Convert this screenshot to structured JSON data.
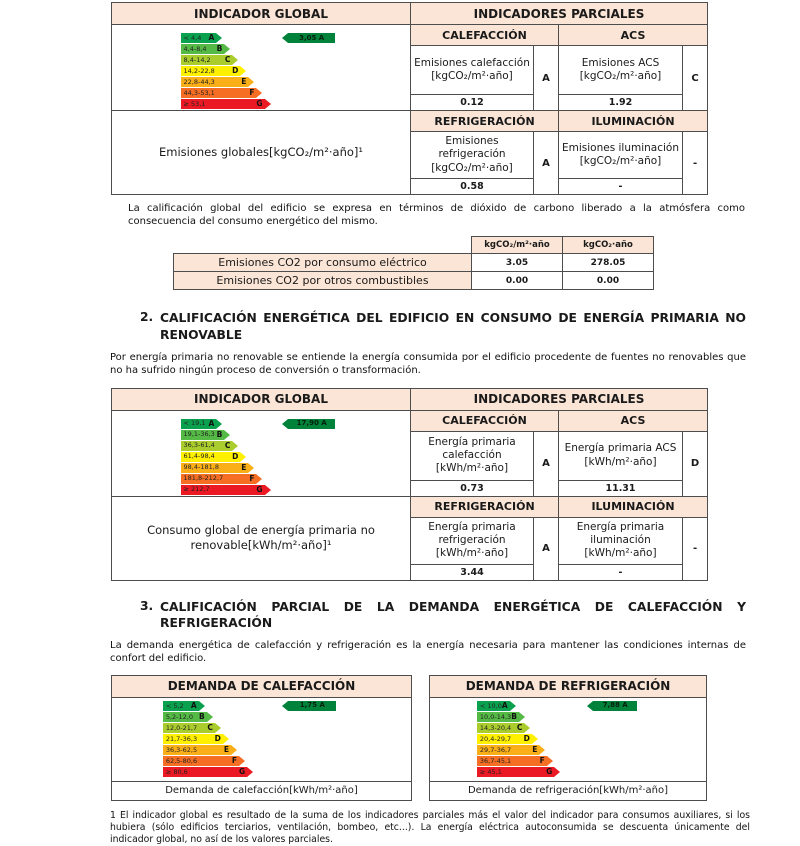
{
  "colors": {
    "header_bg": "#fbe5d6",
    "indicator": "#00823b",
    "scale_colors": [
      "#0aa14e",
      "#55b946",
      "#aacd2d",
      "#fff000",
      "#faaf19",
      "#f56e23",
      "#eb1923"
    ]
  },
  "table1": {
    "header_global": "INDICADOR GLOBAL",
    "header_partials": "INDICADORES PARCIALES",
    "global_label": "Emisiones globales[kgCO₂/m²·año]¹",
    "scale": {
      "indicator": "3,05 A",
      "indicator_color": "#00823b",
      "bars": [
        {
          "range": "< 4,4",
          "letter": "A",
          "color": "#0aa14e"
        },
        {
          "range": "4,4-8,4",
          "letter": "B",
          "color": "#55b946"
        },
        {
          "range": "8,4-14,2",
          "letter": "C",
          "color": "#aacd2d"
        },
        {
          "range": "14,2-22,8",
          "letter": "D",
          "color": "#fff000"
        },
        {
          "range": "22,8-44,3",
          "letter": "E",
          "color": "#faaf19"
        },
        {
          "range": "44,3-53,1",
          "letter": "F",
          "color": "#f56e23"
        },
        {
          "range": "≥ 53,1",
          "letter": "G",
          "color": "#eb1923"
        }
      ]
    },
    "groups": [
      {
        "h1": "CALEFACCIÓN",
        "h2": "ACS",
        "c1": {
          "desc": "Emisiones calefacción [kgCO₂/m²·año]",
          "letter": "A",
          "value": "0.12"
        },
        "c2": {
          "desc": "Emisiones ACS [kgCO₂/m²·año]",
          "letter": "C",
          "value": "1.92"
        }
      },
      {
        "h1": "REFRIGERACIÓN",
        "h2": "ILUMINACIÓN",
        "c1": {
          "desc": "Emisiones refrigeración [kgCO₂/m²·año]",
          "letter": "A",
          "value": "0.58"
        },
        "c2": {
          "desc": "Emisiones iluminación [kgCO₂/m²·año]",
          "letter": "-",
          "value": "-"
        }
      }
    ]
  },
  "co2_note": "La calificación global del edificio se expresa en términos de dióxido de carbono liberado a la atmósfera como consecuencia del consumo energético del mismo.",
  "co2_table": {
    "col_headers": [
      "kgCO₂/m²·año",
      "kgCO₂·año"
    ],
    "rows": [
      {
        "label": "Emisiones CO2 por consumo eléctrico",
        "per_m2": "3.05",
        "total": "278.05"
      },
      {
        "label": "Emisiones CO2 por otros combustibles",
        "per_m2": "0.00",
        "total": "0.00"
      }
    ]
  },
  "section2": {
    "number": "2.",
    "title": "CALIFICACIÓN ENERGÉTICA DEL EDIFICIO EN CONSUMO DE ENERGÍA PRIMARIA NO RENOVABLE",
    "body": "Por energía primaria no renovable se entiende la energía consumida por el edificio procedente de fuentes no renovables que no ha sufrido ningún proceso de conversión o transformación."
  },
  "table2": {
    "header_global": "INDICADOR GLOBAL",
    "header_partials": "INDICADORES PARCIALES",
    "global_label": "Consumo global de energía primaria no renovable[kWh/m²·año]¹",
    "scale": {
      "indicator": "17,90 A",
      "indicator_color": "#00823b",
      "bars": [
        {
          "range": "< 19,1",
          "letter": "A",
          "color": "#0aa14e"
        },
        {
          "range": "19,1-36,3",
          "letter": "B",
          "color": "#55b946"
        },
        {
          "range": "36,3-61,4",
          "letter": "C",
          "color": "#aacd2d"
        },
        {
          "range": "61,4-98,4",
          "letter": "D",
          "color": "#fff000"
        },
        {
          "range": "98,4-181,8",
          "letter": "E",
          "color": "#faaf19"
        },
        {
          "range": "181,8-212,7",
          "letter": "F",
          "color": "#f56e23"
        },
        {
          "range": "≥ 212,7",
          "letter": "G",
          "color": "#eb1923"
        }
      ]
    },
    "groups": [
      {
        "h1": "CALEFACCIÓN",
        "h2": "ACS",
        "c1": {
          "desc": "Energía primaria calefacción [kWh/m²·año]",
          "letter": "A",
          "value": "0.73"
        },
        "c2": {
          "desc": "Energía primaria ACS [kWh/m²·año]",
          "letter": "D",
          "value": "11.31"
        }
      },
      {
        "h1": "REFRIGERACIÓN",
        "h2": "ILUMINACIÓN",
        "c1": {
          "desc": "Energía primaria refrigeración [kWh/m²·año]",
          "letter": "A",
          "value": "3.44"
        },
        "c2": {
          "desc": "Energía primaria iluminación [kWh/m²·año]",
          "letter": "-",
          "value": "-"
        }
      }
    ]
  },
  "section3": {
    "number": "3.",
    "title": "CALIFICACIÓN PARCIAL DE LA DEMANDA ENERGÉTICA DE CALEFACCIÓN Y REFRIGERACIÓN",
    "body": "La demanda energética de calefacción y refrigeración es la energía necesaria para mantener las condiciones internas de confort del edificio."
  },
  "demand_heating": {
    "header": "DEMANDA DE CALEFACCIÓN",
    "footer": "Demanda de calefacción[kWh/m²·año]",
    "scale": {
      "indicator": "1,75 A",
      "indicator_color": "#00823b",
      "bars": [
        {
          "range": "< 5,2",
          "letter": "A",
          "color": "#0aa14e"
        },
        {
          "range": "5,2-12,0",
          "letter": "B",
          "color": "#55b946"
        },
        {
          "range": "12,0-21,7",
          "letter": "C",
          "color": "#aacd2d"
        },
        {
          "range": "21,7-36,3",
          "letter": "D",
          "color": "#fff000"
        },
        {
          "range": "36,3-62,5",
          "letter": "E",
          "color": "#faaf19"
        },
        {
          "range": "62,5-80,6",
          "letter": "F",
          "color": "#f56e23"
        },
        {
          "range": "≥ 80,6",
          "letter": "G",
          "color": "#eb1923"
        }
      ]
    }
  },
  "demand_cooling": {
    "header": "DEMANDA DE REFRIGERACIÓN",
    "footer": "Demanda de refrigeración[kWh/m²·año]",
    "scale": {
      "indicator": "7,88 A",
      "indicator_color": "#00823b",
      "bars": [
        {
          "range": "< 10,0",
          "letter": "A",
          "color": "#0aa14e"
        },
        {
          "range": "10,0-14,3",
          "letter": "B",
          "color": "#55b946"
        },
        {
          "range": "14,3-20,4",
          "letter": "C",
          "color": "#aacd2d"
        },
        {
          "range": "20,4-29,7",
          "letter": "D",
          "color": "#fff000"
        },
        {
          "range": "29,7-36,7",
          "letter": "E",
          "color": "#faaf19"
        },
        {
          "range": "36,7-45,1",
          "letter": "F",
          "color": "#f56e23"
        },
        {
          "range": "≥ 45,1",
          "letter": "G",
          "color": "#eb1923"
        }
      ]
    }
  },
  "footnote": "1 El indicador global es resultado de la suma de los indicadores parciales más el valor del indicador para consumos auxiliares, si los hubiera (sólo edificios terciarios, ventilación, bombeo, etc...). La energía eléctrica autoconsumida se descuenta únicamente del indicador global, no así de los valores parciales."
}
